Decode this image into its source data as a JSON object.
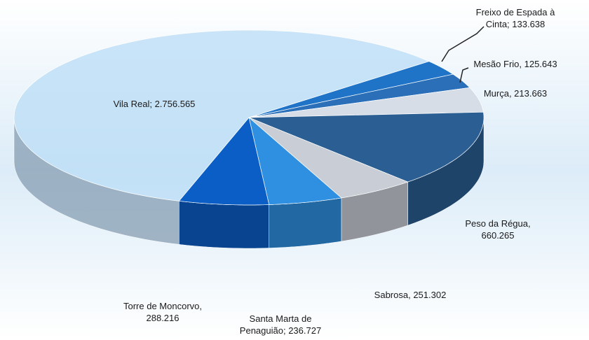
{
  "chart_data": {
    "type": "pie3d",
    "categories": [
      "Freixo de Espada à Cinta",
      "Mesão Frio",
      "Murça",
      "Peso da Régua",
      "Sabrosa",
      "Santa Marta de Penaguião",
      "Torre de Moncorvo",
      "Vila Real"
    ],
    "values": [
      133638,
      125643,
      213663,
      660265,
      251302,
      236727,
      288216,
      2756565
    ],
    "value_labels": [
      "Freixo de Espada à\nCinta; 133.638",
      "Mesão Frio, 125.643",
      "Murça, 213.663",
      "Peso da Régua,\n660.265",
      "Sabrosa, 251.302",
      "Santa Marta de\nPenaguião; 236.727",
      "Torre de Moncorvo,\n288.216",
      "Vila Real; 2.756.565"
    ],
    "colors": [
      "#1f74c8",
      "#2a6fb8",
      "#d6dde6",
      "#2b5f93",
      "#c9ced6",
      "#2f90e2",
      "#0b5ec6",
      "#b9dcf6"
    ]
  }
}
